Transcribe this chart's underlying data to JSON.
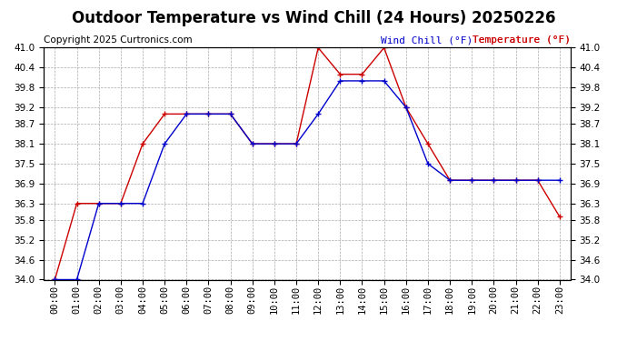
{
  "title": "Outdoor Temperature vs Wind Chill (24 Hours) 20250226",
  "copyright": "Copyright 2025 Curtronics.com",
  "legend_wind_chill": "Wind Chill (°F)",
  "legend_temperature": "Temperature (°F)",
  "hours": [
    "00:00",
    "01:00",
    "02:00",
    "03:00",
    "04:00",
    "05:00",
    "06:00",
    "07:00",
    "08:00",
    "09:00",
    "10:00",
    "11:00",
    "12:00",
    "13:00",
    "14:00",
    "15:00",
    "16:00",
    "17:00",
    "18:00",
    "19:00",
    "20:00",
    "21:00",
    "22:00",
    "23:00"
  ],
  "temperature": [
    34.0,
    36.3,
    36.3,
    36.3,
    38.1,
    39.0,
    39.0,
    39.0,
    39.0,
    38.1,
    38.1,
    38.1,
    41.0,
    40.2,
    40.2,
    41.0,
    39.2,
    38.1,
    37.0,
    37.0,
    37.0,
    37.0,
    37.0,
    35.9
  ],
  "wind_chill": [
    34.0,
    34.0,
    36.3,
    36.3,
    36.3,
    38.1,
    39.0,
    39.0,
    39.0,
    38.1,
    38.1,
    38.1,
    39.0,
    40.0,
    40.0,
    40.0,
    39.2,
    37.5,
    37.0,
    37.0,
    37.0,
    37.0,
    37.0,
    37.0
  ],
  "ylim": [
    34.0,
    41.0
  ],
  "yticks": [
    34.0,
    34.6,
    35.2,
    35.8,
    36.3,
    36.9,
    37.5,
    38.1,
    38.7,
    39.2,
    39.8,
    40.4,
    41.0
  ],
  "temp_color": "#cc0000",
  "wind_chill_color": "#0000cc",
  "background_color": "#ffffff",
  "grid_color": "#aaaaaa",
  "title_fontsize": 12,
  "legend_fontsize": 8,
  "tick_fontsize": 7.5,
  "copyright_fontsize": 7.5
}
